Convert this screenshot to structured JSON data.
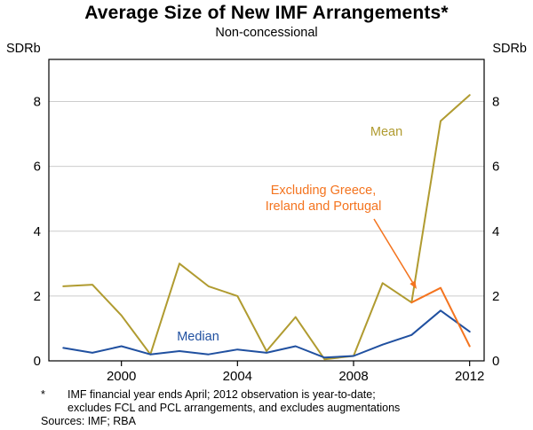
{
  "chart_data": {
    "type": "line",
    "title": "Average Size of New IMF Arrangements*",
    "subtitle": "Non-concessional",
    "ylabel_left": "SDRb",
    "ylabel_right": "SDRb",
    "xlim": [
      1997.5,
      2012.5
    ],
    "ylim": [
      0,
      9.3
    ],
    "xticks": [
      2000,
      2004,
      2008,
      2012
    ],
    "yticks": [
      0,
      2,
      4,
      6,
      8
    ],
    "grid": "horizontal",
    "legend_position": "inline-annotations",
    "x": [
      1998,
      1999,
      2000,
      2001,
      2002,
      2003,
      2004,
      2005,
      2006,
      2007,
      2008,
      2009,
      2010,
      2011,
      2012
    ],
    "series": [
      {
        "name": "Mean",
        "color": "#b09b30",
        "values": [
          2.3,
          2.35,
          1.4,
          0.2,
          3.0,
          2.3,
          2.0,
          0.3,
          1.35,
          0.05,
          0.15,
          2.4,
          1.8,
          7.4,
          8.2
        ]
      },
      {
        "name": "Median",
        "color": "#2050a0",
        "values": [
          0.4,
          0.25,
          0.45,
          0.2,
          0.3,
          0.2,
          0.35,
          0.25,
          0.45,
          0.1,
          0.15,
          0.5,
          0.8,
          1.55,
          0.9
        ]
      },
      {
        "name": "Excluding Greece, Ireland and Portugal",
        "color": "#f4741f",
        "values": [
          null,
          null,
          null,
          null,
          null,
          null,
          null,
          null,
          null,
          null,
          null,
          null,
          1.8,
          2.25,
          0.45
        ]
      }
    ],
    "colors": {
      "grid": "#cccccc",
      "axis": "#000000"
    },
    "annotations": {
      "mean": "Mean",
      "median": "Median",
      "excluding_line1": "Excluding Greece,",
      "excluding_line2": "Ireland and Portugal"
    }
  },
  "footnote": {
    "marker": "*",
    "line1": "IMF financial year ends April; 2012 observation is year-to-date;",
    "line2": "excludes FCL and PCL arrangements, and excludes augmentations",
    "sources": "Sources: IMF; RBA"
  }
}
